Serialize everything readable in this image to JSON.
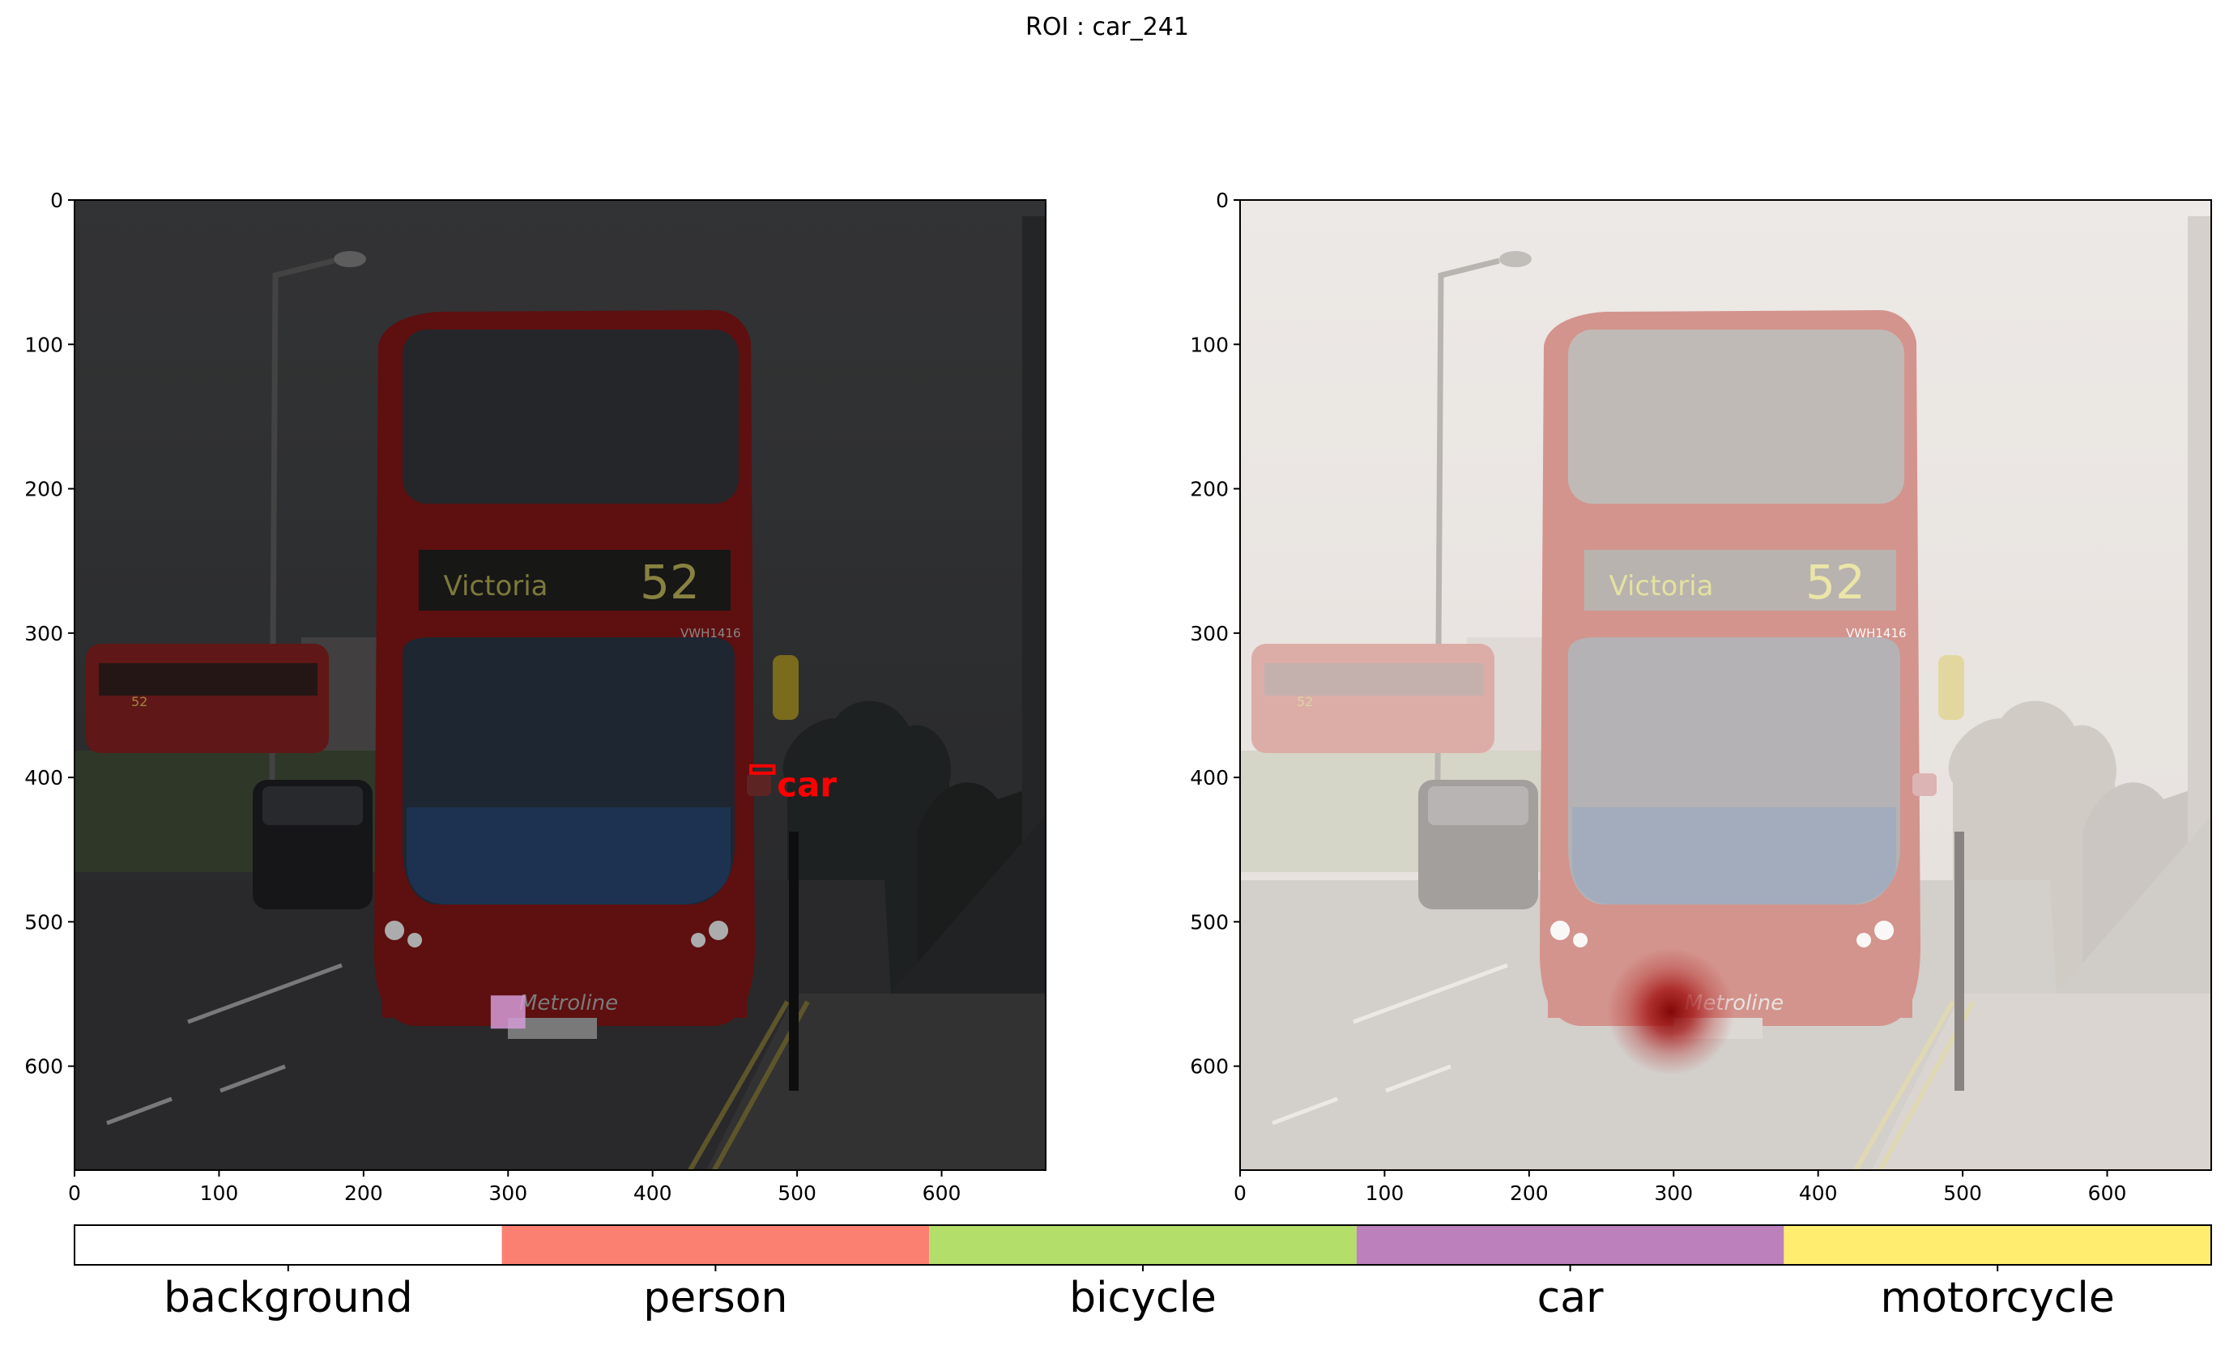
{
  "chart_data": [
    {
      "type": "image",
      "title": "ROI : car_241",
      "xlabel": "",
      "ylabel": "",
      "xlim": [
        0,
        672
      ],
      "ylim": [
        672,
        0
      ],
      "x_ticks": [
        0,
        100,
        200,
        300,
        400,
        500,
        600
      ],
      "y_ticks": [
        0,
        100,
        200,
        300,
        400,
        500,
        600
      ],
      "grid": false,
      "scene_text": {
        "destination": "Victoria",
        "route": "52",
        "fleet_number": "VWH1416",
        "operator": "Metroline",
        "rear_bus_route": "52"
      },
      "annotations": [
        {
          "label": "car",
          "color": "#ff0000",
          "box": {
            "x0": 468,
            "y0": 392,
            "x1": 484,
            "y1": 397
          },
          "text_xy": [
            486,
            413
          ]
        },
        {
          "label": "",
          "color": "#d49bd6",
          "box": {
            "x0": 288,
            "y0": 551,
            "x1": 312,
            "y1": 574
          }
        }
      ]
    },
    {
      "type": "heatmap",
      "xlabel": "",
      "ylabel": "",
      "xlim": [
        0,
        672
      ],
      "ylim": [
        672,
        0
      ],
      "x_ticks": [
        0,
        100,
        200,
        300,
        400,
        500,
        600
      ],
      "y_ticks": [
        0,
        100,
        200,
        300,
        400,
        500,
        600
      ],
      "grid": false,
      "scene_text": {
        "destination": "Victoria",
        "route": "52",
        "fleet_number": "VWH1416",
        "operator": "Metroline",
        "rear_bus_route": "52"
      },
      "hotspot": {
        "x": 298,
        "y": 562,
        "sigma": 20,
        "peak_color": "#8b0000"
      }
    }
  ],
  "legend": {
    "categories": [
      {
        "label": "background",
        "color": "#ffffff"
      },
      {
        "label": "person",
        "color": "#fb8072"
      },
      {
        "label": "bicycle",
        "color": "#b3de69"
      },
      {
        "label": "car",
        "color": "#bc80bd"
      },
      {
        "label": "motorcycle",
        "color": "#ffed6f"
      }
    ]
  }
}
